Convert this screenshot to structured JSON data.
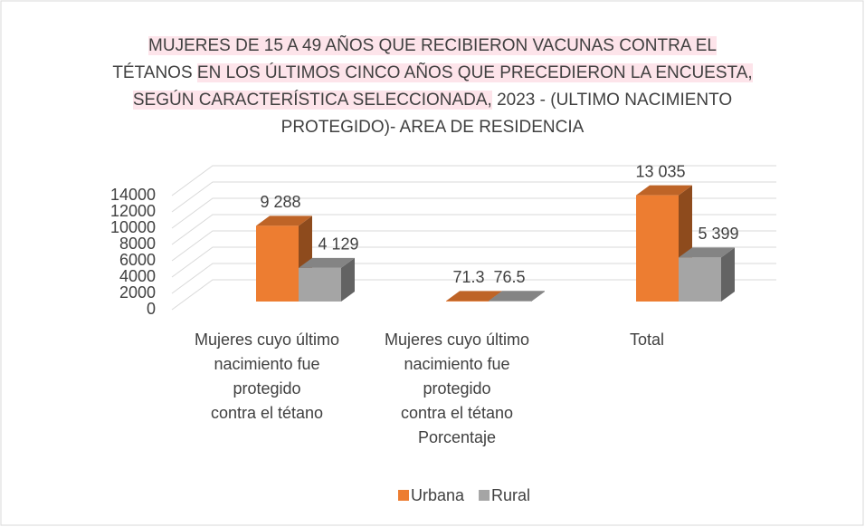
{
  "chart_data": {
    "type": "bar3d",
    "title": [
      "MUJERES DE 15 A 49 AÑOS QUE RECIBIERON VACUNAS CONTRA  EL",
      "TÉTANOS",
      "EN LOS ÚLTIMOS CINCO AÑOS QUE PRECEDIERON LA ENCUESTA,",
      "SEGÚN CARACTERÍSTICA SELECCIONADA,",
      "2023 - (ULTIMO NACIMIENTO",
      "PROTEGIDO)- AREA DE RESIDENCIA"
    ],
    "categories": [
      [
        "Mujeres cuyo último",
        "nacimiento fue",
        "protegido",
        "contra el tétano"
      ],
      [
        "Mujeres cuyo último",
        "nacimiento fue",
        "protegido",
        "contra el tétano",
        "Porcentaje"
      ],
      [
        "Total"
      ]
    ],
    "series": [
      {
        "name": "Urbana",
        "color": "#ed7d31",
        "values": [
          9288,
          71.3,
          13035
        ],
        "value_labels": [
          "9 288",
          "71.3",
          "13 035"
        ]
      },
      {
        "name": "Rural",
        "color": "#a5a5a5",
        "values": [
          4129,
          76.5,
          5399
        ],
        "value_labels": [
          "4 129",
          "76.5",
          "5 399"
        ]
      }
    ],
    "ylim": [
      0,
      14000
    ],
    "yticks": [
      0,
      2000,
      4000,
      6000,
      8000,
      10000,
      12000,
      14000
    ],
    "grid": true,
    "legend": "bottom"
  }
}
